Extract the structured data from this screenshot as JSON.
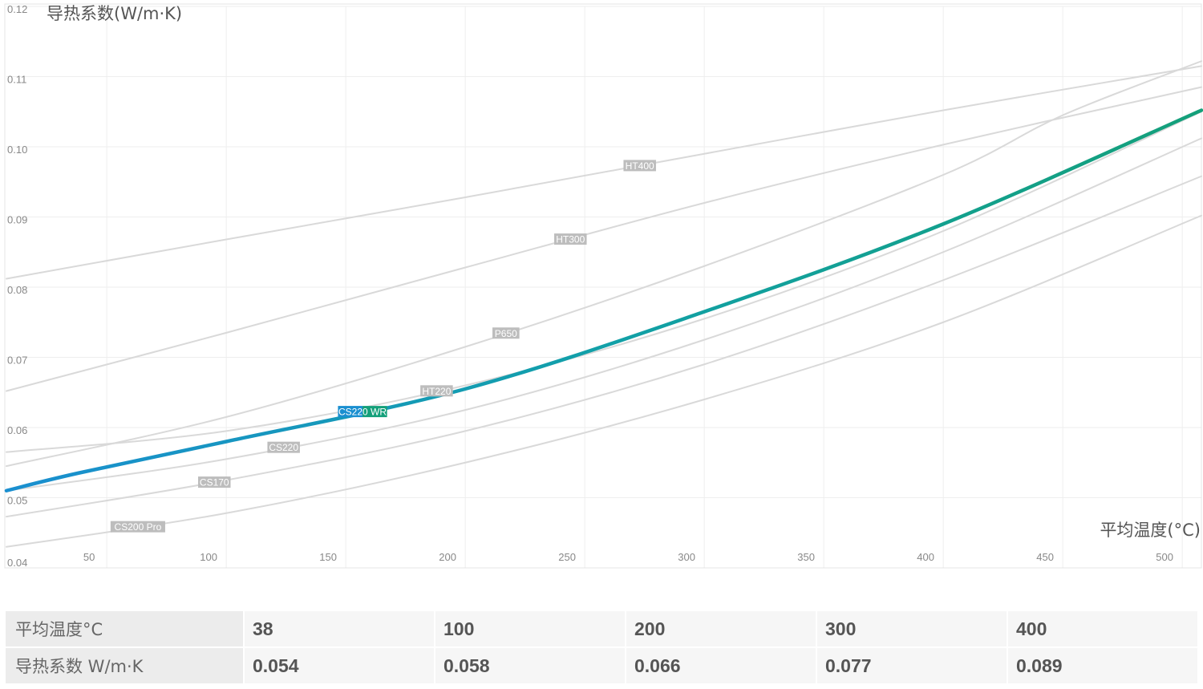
{
  "chart_data": {
    "type": "line",
    "ylabel": "导热系数(W/m·K)",
    "xlabel": "平均温度(°C)",
    "xlim": [
      8,
      508
    ],
    "ylim": [
      0.04,
      0.12
    ],
    "xticks": [
      50,
      100,
      150,
      200,
      250,
      300,
      350,
      400,
      450,
      500
    ],
    "yticks": [
      0.04,
      0.05,
      0.06,
      0.07,
      0.08,
      0.09,
      0.1,
      0.11,
      0.12
    ],
    "grid": true,
    "series": [
      {
        "name": "HT400",
        "color": "#d9d9d9",
        "highlight": false,
        "label_at": 273,
        "x": [
          8,
          100,
          200,
          300,
          400,
          508
        ],
        "y": [
          0.0812,
          0.0868,
          0.0928,
          0.099,
          0.1052,
          0.1115
        ]
      },
      {
        "name": "HT300",
        "color": "#d9d9d9",
        "highlight": false,
        "label_at": 244,
        "x": [
          8,
          100,
          200,
          300,
          400,
          508
        ],
        "y": [
          0.0652,
          0.0735,
          0.0828,
          0.092,
          0.1003,
          0.1085
        ]
      },
      {
        "name": "P650",
        "color": "#d9d9d9",
        "highlight": false,
        "label_at": 217,
        "x": [
          8,
          100,
          200,
          300,
          400,
          450,
          508
        ],
        "y": [
          0.0545,
          0.0615,
          0.0715,
          0.083,
          0.096,
          0.1045,
          0.1122
        ]
      },
      {
        "name": "HT220",
        "color": "#d9d9d9",
        "highlight": false,
        "label_at": 188,
        "x": [
          8,
          100,
          200,
          300,
          400,
          508
        ],
        "y": [
          0.0565,
          0.0595,
          0.066,
          0.0755,
          0.088,
          0.105
        ]
      },
      {
        "name": "CS220",
        "color": "#d9d9d9",
        "highlight": false,
        "label_at": 124,
        "x": [
          8,
          100,
          200,
          300,
          400,
          508
        ],
        "y": [
          0.051,
          0.0555,
          0.0625,
          0.0725,
          0.085,
          0.1012
        ]
      },
      {
        "name": "CS170",
        "color": "#d9d9d9",
        "highlight": false,
        "label_at": 95,
        "x": [
          8,
          100,
          200,
          300,
          400,
          508
        ],
        "y": [
          0.0473,
          0.0525,
          0.0595,
          0.069,
          0.081,
          0.0958
        ]
      },
      {
        "name": "CS200 Pro",
        "color": "#d9d9d9",
        "highlight": false,
        "label_at": 63,
        "x": [
          8,
          100,
          200,
          300,
          400,
          508
        ],
        "y": [
          0.043,
          0.0478,
          0.055,
          0.064,
          0.075,
          0.0902
        ]
      },
      {
        "name": "CS220 WR",
        "color": "#14a07a",
        "highlight": true,
        "label_at": 157,
        "x": [
          8,
          38,
          100,
          200,
          300,
          400,
          508
        ],
        "y": [
          0.051,
          0.0535,
          0.058,
          0.0655,
          0.0765,
          0.089,
          0.1052
        ]
      }
    ]
  },
  "table": {
    "rows": [
      {
        "label": "平均温度°C",
        "values": [
          "38",
          "100",
          "200",
          "300",
          "400"
        ]
      },
      {
        "label": "导热系数 W/m·K",
        "values": [
          "0.054",
          "0.058",
          "0.066",
          "0.077",
          "0.089"
        ]
      }
    ]
  }
}
